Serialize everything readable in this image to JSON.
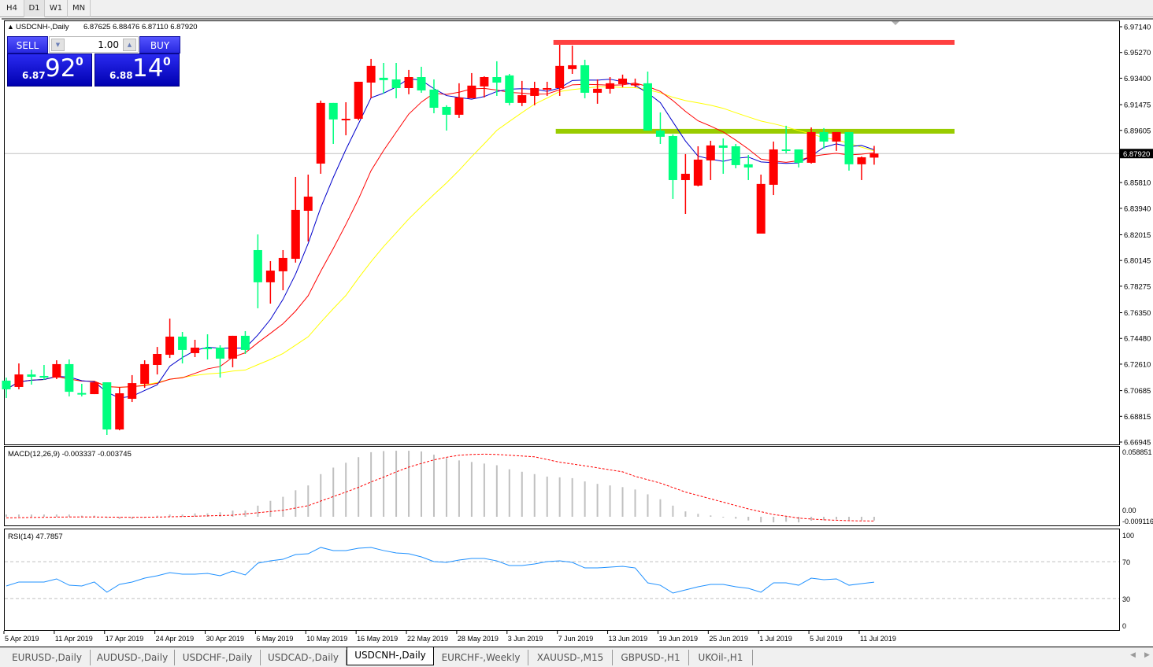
{
  "toolbar": {
    "timeframes": [
      "H4",
      "D1",
      "W1",
      "MN"
    ],
    "active": "D1"
  },
  "header": {
    "symbol": "USDCNH-,Daily",
    "ohlc": "6.87625 6.88476 6.87110 6.87920"
  },
  "trade_panel": {
    "sell_label": "SELL",
    "buy_label": "BUY",
    "lot": "1.00",
    "sell_price": {
      "prefix": "6.87",
      "big": "92",
      "sup": "0"
    },
    "buy_price": {
      "prefix": "6.88",
      "big": "14",
      "sup": "0"
    }
  },
  "colors": {
    "up_candle": "#ff0000",
    "down_candle": "#00ff7f",
    "ma_fast": "#0000cc",
    "ma_mid": "#ff0000",
    "ma_slow": "#ffff00",
    "resistance": "#ff4040",
    "support": "#99cc00",
    "macd_hist": "#c0c0c0",
    "macd_signal": "#ff0000",
    "rsi": "#1e90ff"
  },
  "chart_data": [
    {
      "type": "candlestick",
      "title": "USDCNH-,Daily",
      "ylim": [
        6.66945,
        6.9714
      ],
      "price_ticks": [
        "6.97140",
        "6.95270",
        "6.93400",
        "6.91475",
        "6.89605",
        "6.87735",
        "6.85810",
        "6.83940",
        "6.82015",
        "6.80145",
        "6.78275",
        "6.76350",
        "6.74480",
        "6.72610",
        "6.70685",
        "6.68815",
        "6.66945"
      ],
      "current_price": "6.87920",
      "date_labels": [
        "5 Apr 2019",
        "11 Apr 2019",
        "17 Apr 2019",
        "24 Apr 2019",
        "30 Apr 2019",
        "6 May 2019",
        "10 May 2019",
        "16 May 2019",
        "22 May 2019",
        "28 May 2019",
        "3 Jun 2019",
        "7 Jun 2019",
        "13 Jun 2019",
        "19 Jun 2019",
        "25 Jun 2019",
        "1 Jul 2019",
        "5 Jul 2019",
        "11 Jul 2019"
      ],
      "levels": [
        {
          "price": 6.96,
          "color": "#ff4040"
        },
        {
          "price": 6.8954,
          "color": "#99cc00"
        }
      ],
      "ohlc": [
        [
          6.7141,
          6.7163,
          6.7015,
          6.7078
        ],
        [
          6.7095,
          6.7266,
          6.7078,
          6.7186
        ],
        [
          6.7186,
          6.7221,
          6.7112,
          6.7169
        ],
        [
          6.7175,
          6.7255,
          6.7146,
          6.7163
        ],
        [
          6.7163,
          6.7289,
          6.7152,
          6.7261
        ],
        [
          6.7261,
          6.7295,
          6.7026,
          6.706
        ],
        [
          6.7051,
          6.7118,
          6.7026,
          6.7049
        ],
        [
          6.7043,
          6.7129,
          6.7043,
          6.7129
        ],
        [
          6.7129,
          6.7129,
          6.6746,
          6.6786
        ],
        [
          6.6786,
          6.7095,
          6.678,
          6.7049
        ],
        [
          6.7009,
          6.7181,
          6.6986,
          6.7123
        ],
        [
          6.7118,
          6.7289,
          6.7089,
          6.7261
        ],
        [
          6.7255,
          6.7386,
          6.7186,
          6.7335
        ],
        [
          6.7329,
          6.7592,
          6.7306,
          6.7461
        ],
        [
          6.7461,
          6.7495,
          6.7266,
          6.7364
        ],
        [
          6.7341,
          6.7438,
          6.7312,
          6.7381
        ],
        [
          6.7381,
          6.7478,
          6.7295,
          6.7378
        ],
        [
          6.7381,
          6.7398,
          6.7163,
          6.7301
        ],
        [
          6.7301,
          6.7467,
          6.7238,
          6.7467
        ],
        [
          6.7467,
          6.7501,
          6.7335,
          6.7364
        ],
        [
          6.809,
          6.8204,
          6.7667,
          6.7856
        ],
        [
          6.7856,
          6.801,
          6.7701,
          6.7941
        ],
        [
          6.7936,
          6.809,
          6.7798,
          6.8033
        ],
        [
          6.8027,
          6.8622,
          6.7999,
          6.8382
        ],
        [
          6.8376,
          6.8639,
          6.8153,
          6.8479
        ],
        [
          6.8719,
          6.9177,
          6.8645,
          6.916
        ],
        [
          6.916,
          6.916,
          6.8862,
          6.904
        ],
        [
          6.9043,
          6.9165,
          6.8925,
          6.9045
        ],
        [
          6.9045,
          6.9314,
          6.9034,
          6.9314
        ],
        [
          6.9308,
          6.948,
          6.9194,
          6.9429
        ],
        [
          6.9343,
          6.9451,
          6.9228,
          6.9326
        ],
        [
          6.9331,
          6.9451,
          6.9194,
          6.9268
        ],
        [
          6.9268,
          6.94,
          6.9223,
          6.9348
        ],
        [
          6.9348,
          6.9423,
          6.9234,
          6.9251
        ],
        [
          6.9257,
          6.9331,
          6.9085,
          6.9125
        ],
        [
          6.9131,
          6.9143,
          6.8959,
          6.9074
        ],
        [
          6.9074,
          6.9303,
          6.9051,
          6.92
        ],
        [
          6.9194,
          6.9377,
          6.9194,
          6.9286
        ],
        [
          6.928,
          6.9354,
          6.92,
          6.9348
        ],
        [
          6.9348,
          6.9463,
          6.9211,
          6.9308
        ],
        [
          6.936,
          6.9371,
          6.9143,
          6.916
        ],
        [
          6.916,
          6.932,
          6.9137,
          6.9217
        ],
        [
          6.9211,
          6.9314,
          6.9143,
          6.9268
        ],
        [
          6.9263,
          6.9314,
          6.9211,
          6.9268
        ],
        [
          6.9268,
          6.9583,
          6.9211,
          6.9429
        ],
        [
          6.9406,
          6.9577,
          6.9371,
          6.9434
        ],
        [
          6.9434,
          6.9474,
          6.9194,
          6.9234
        ],
        [
          6.9234,
          6.9331,
          6.9154,
          6.9263
        ],
        [
          6.9263,
          6.9348,
          6.9228,
          6.9303
        ],
        [
          6.9297,
          6.9366,
          6.9274,
          6.9337
        ],
        [
          6.9297,
          6.9337,
          6.9274,
          6.9299
        ],
        [
          6.9303,
          6.9388,
          6.8959,
          6.8959
        ],
        [
          6.8959,
          6.9091,
          6.8862,
          6.8914
        ],
        [
          6.8919,
          6.8931,
          6.8462,
          6.8599
        ],
        [
          6.8599,
          6.8788,
          6.8353,
          6.8645
        ],
        [
          6.8559,
          6.8845,
          6.8553,
          6.8748
        ],
        [
          6.8742,
          6.8885,
          6.8599,
          6.8851
        ],
        [
          6.8851,
          6.8902,
          6.8645,
          6.8834
        ],
        [
          6.8845,
          6.8862,
          6.8685,
          6.8708
        ],
        [
          6.8714,
          6.8782,
          6.8599,
          6.8691
        ],
        [
          6.821,
          6.8639,
          6.821,
          6.8571
        ],
        [
          6.8565,
          6.8879,
          6.849,
          6.8822
        ],
        [
          6.8822,
          6.8994,
          6.8794,
          6.8811
        ],
        [
          6.8822,
          6.8822,
          6.8691,
          6.8725
        ],
        [
          6.8725,
          6.8982,
          6.8719,
          6.8948
        ],
        [
          6.8948,
          6.8977,
          6.8828,
          6.8879
        ],
        [
          6.8879,
          6.8948,
          6.8811,
          6.8948
        ],
        [
          6.8948,
          6.8948,
          6.8668,
          6.8714
        ],
        [
          6.8714,
          6.8771,
          6.8599,
          6.8765
        ],
        [
          6.87625,
          6.88476,
          6.8711,
          6.8792
        ]
      ]
    },
    {
      "type": "bar+line",
      "title": "MACD(12,26,9) -0.003337 -0.003745",
      "ylim": [
        -0.009116,
        0.058851
      ],
      "axis_labels": [
        "0.058851",
        "0.00",
        "-0.009116"
      ],
      "histogram": [
        0.002,
        0.002,
        0.002,
        0.002,
        0.002,
        0.002,
        0.001,
        0.001,
        -0.001,
        -0.002,
        -0.002,
        -0.001,
        0.001,
        0.002,
        0.002,
        0.003,
        0.003,
        0.004,
        0.0055,
        0.0055,
        0.0099,
        0.0142,
        0.0178,
        0.0236,
        0.0279,
        0.038,
        0.0438,
        0.0481,
        0.0531,
        0.0575,
        0.0585,
        0.0588,
        0.0588,
        0.0582,
        0.0553,
        0.0524,
        0.0502,
        0.0488,
        0.0474,
        0.0459,
        0.0423,
        0.0401,
        0.038,
        0.0358,
        0.0351,
        0.0344,
        0.0315,
        0.0293,
        0.0279,
        0.0264,
        0.0243,
        0.02,
        0.0156,
        0.0099,
        0.0048,
        0.0026,
        0.0012,
        -0.0002,
        -0.0017,
        -0.0033,
        -0.005,
        -0.005,
        -0.0044,
        -0.005,
        -0.0035,
        -0.0031,
        -0.0024,
        -0.003,
        -0.0033,
        -0.003337
      ],
      "signal": [
        -0.001,
        -0.0008,
        -0.0006,
        -0.0005,
        -0.0003,
        -0.0002,
        -0.0002,
        -0.0002,
        -0.0003,
        -0.0004,
        -0.0005,
        -0.0004,
        -0.0003,
        0,
        0.0002,
        0.0005,
        0.0008,
        0.0011,
        0.0014,
        0.0025,
        0.0036,
        0.0047,
        0.0058,
        0.0078,
        0.0099,
        0.014,
        0.018,
        0.022,
        0.0262,
        0.031,
        0.0353,
        0.04,
        0.0442,
        0.0475,
        0.0507,
        0.053,
        0.0548,
        0.0555,
        0.0558,
        0.0555,
        0.0548,
        0.0541,
        0.0534,
        0.051,
        0.0486,
        0.047,
        0.0454,
        0.0436,
        0.0418,
        0.04,
        0.036,
        0.033,
        0.03,
        0.026,
        0.022,
        0.019,
        0.016,
        0.013,
        0.01,
        0.007,
        0.0045,
        0.002,
        0.0005,
        -0.0012,
        -0.002,
        -0.0027,
        -0.0031,
        -0.0035,
        -0.0037,
        -0.003745
      ]
    },
    {
      "type": "line",
      "title": "RSI(14) 47.7857",
      "ylim": [
        0,
        100
      ],
      "levels": [
        30,
        70
      ],
      "axis_labels": [
        "100",
        "70",
        "30",
        "0"
      ],
      "values": [
        43.6,
        47.9,
        47.9,
        47.9,
        51.3,
        44.4,
        43.6,
        47.9,
        36.8,
        45.3,
        47.9,
        52.1,
        54.7,
        58.1,
        56.4,
        56.4,
        57.3,
        54.7,
        59.8,
        55.6,
        68.4,
        70.9,
        72.6,
        77.8,
        78.6,
        85.5,
        82.1,
        82.1,
        84.6,
        85.5,
        82.1,
        79.5,
        78.6,
        75.2,
        70.1,
        69.2,
        71.8,
        73.5,
        73.5,
        70.9,
        65.8,
        65.8,
        67.5,
        70.1,
        70.9,
        69.2,
        63.2,
        63.2,
        64.1,
        65.0,
        63.2,
        47.0,
        44.4,
        35.9,
        39.3,
        42.7,
        45.3,
        45.3,
        42.7,
        41.0,
        36.8,
        47.0,
        47.0,
        44.4,
        52.1,
        50.4,
        51.3,
        44.4,
        46.2,
        47.7857
      ]
    }
  ],
  "tabs": [
    "EURUSD-,Daily",
    "AUDUSD-,Daily",
    "USDCHF-,Daily",
    "USDCAD-,Daily",
    "USDCNH-,Daily",
    "EURCHF-,Weekly",
    "XAUUSD-,M15",
    "GBPUSD-,H1",
    "UKOil-,H1"
  ],
  "active_tab": "USDCNH-,Daily"
}
